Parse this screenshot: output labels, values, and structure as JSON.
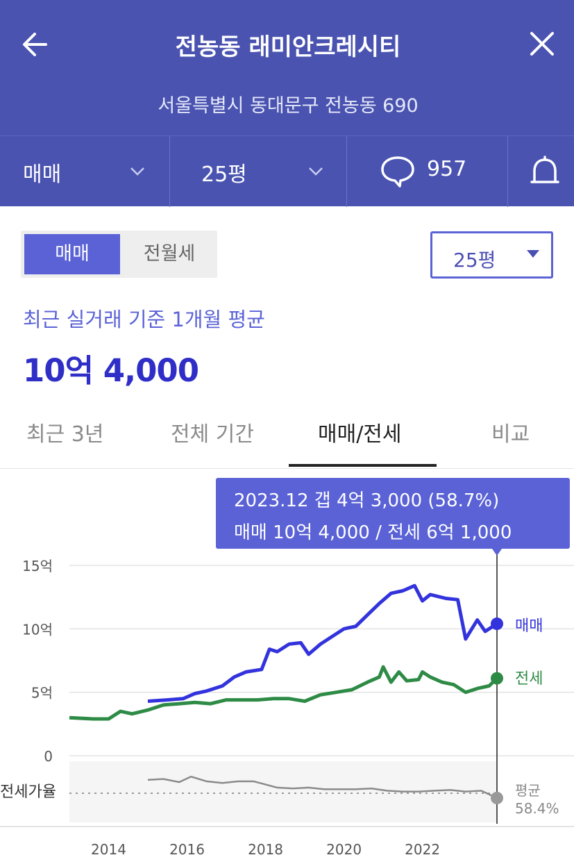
{
  "header": {
    "title": "전농동 래미안크레시티",
    "address": "서울특별시 동대문구 전농동 690",
    "trade_type": "매매",
    "size": "25평",
    "comment_count": "957"
  },
  "controls": {
    "segment": [
      "매매",
      "전월세"
    ],
    "size_dropdown": "25평"
  },
  "summary": {
    "basis": "최근 실거래 기준 1개월 평균",
    "price": "10억 4,000"
  },
  "tabs": [
    "최근 3년",
    "전체 기간",
    "매매/전세",
    "비교"
  ],
  "tooltip": {
    "line1": "2023.12  갭 4억 3,000 (58.7%)",
    "line2": "매매 10억 4,000 / 전세 6억 1,000"
  },
  "colors": {
    "header": "#4a54b0",
    "accent": "#5a62d6",
    "sale": "#3333dd",
    "jeonse": "#2e8b46",
    "ratio": "#8a8a8a"
  },
  "chart_data": {
    "type": "line",
    "x_ticks": [
      "2014",
      "2016",
      "2018",
      "2020",
      "2022"
    ],
    "y_ticks": [
      "15억",
      "10억",
      "5억",
      "0"
    ],
    "ylim": [
      0,
      15
    ],
    "unit": "억",
    "series": [
      {
        "name": "매매",
        "x": [
          2015.0,
          2015.5,
          2015.9,
          2016.2,
          2016.5,
          2016.9,
          2017.2,
          2017.5,
          2017.9,
          2018.1,
          2018.3,
          2018.6,
          2018.9,
          2019.1,
          2019.4,
          2019.7,
          2020.0,
          2020.3,
          2020.6,
          2020.9,
          2021.2,
          2021.5,
          2021.8,
          2022.0,
          2022.2,
          2022.6,
          2022.9,
          2023.1,
          2023.4,
          2023.6,
          2023.9
        ],
        "values": [
          4.3,
          4.4,
          4.5,
          4.9,
          5.1,
          5.5,
          6.2,
          6.6,
          6.8,
          8.4,
          8.2,
          8.8,
          8.9,
          8.0,
          8.8,
          9.4,
          10.0,
          10.2,
          11.1,
          12.0,
          12.8,
          13.0,
          13.4,
          12.2,
          12.7,
          12.4,
          12.3,
          9.2,
          10.7,
          9.8,
          10.4
        ]
      },
      {
        "name": "전세",
        "x": [
          2013.0,
          2013.6,
          2014.0,
          2014.3,
          2014.6,
          2015.0,
          2015.4,
          2015.8,
          2016.2,
          2016.6,
          2017.0,
          2017.4,
          2017.8,
          2018.2,
          2018.6,
          2019.0,
          2019.4,
          2019.8,
          2020.2,
          2020.6,
          2020.9,
          2021.0,
          2021.2,
          2021.4,
          2021.6,
          2021.9,
          2022.0,
          2022.2,
          2022.5,
          2022.8,
          2023.1,
          2023.4,
          2023.7,
          2023.9
        ],
        "values": [
          3.0,
          2.9,
          2.9,
          3.5,
          3.3,
          3.6,
          4.0,
          4.1,
          4.2,
          4.1,
          4.4,
          4.4,
          4.4,
          4.5,
          4.5,
          4.3,
          4.8,
          5.0,
          5.2,
          5.8,
          6.2,
          7.0,
          5.8,
          6.6,
          5.9,
          6.0,
          6.6,
          6.2,
          5.8,
          5.6,
          5.0,
          5.3,
          5.5,
          6.1
        ]
      },
      {
        "name": "전세가율",
        "x": [
          2015.0,
          2015.4,
          2015.8,
          2016.1,
          2016.5,
          2016.9,
          2017.3,
          2017.7,
          2018.0,
          2018.3,
          2018.7,
          2019.1,
          2019.5,
          2019.9,
          2020.3,
          2020.7,
          2021.1,
          2021.5,
          2021.9,
          2022.3,
          2022.7,
          2023.1,
          2023.5,
          2023.9
        ],
        "values": [
          82,
          83,
          79,
          86,
          80,
          78,
          80,
          80,
          76,
          72,
          71,
          72,
          70,
          70,
          70,
          71,
          68,
          67,
          67,
          68,
          69,
          67,
          68,
          58.7
        ]
      }
    ],
    "ratio_label": "전세가율",
    "ratio_avg_label": "평균",
    "ratio_avg": "58.4%",
    "marker_date": "2023.12"
  }
}
